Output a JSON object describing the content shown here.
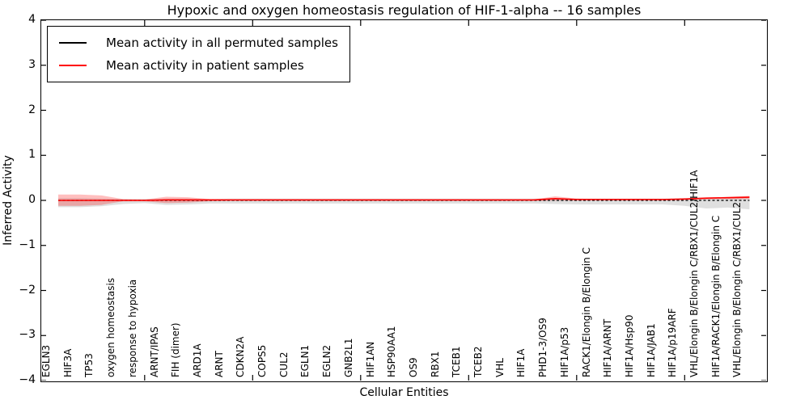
{
  "figure": {
    "title": "Hypoxic and oxygen homeostasis regulation of HIF-1-alpha -- 16 samples",
    "xlabel": "Cellular Entities",
    "ylabel": "Inferred Activity"
  },
  "legend": {
    "items": [
      {
        "label": "Mean activity in all permuted samples",
        "color": "#000000"
      },
      {
        "label": "Mean activity in patient samples",
        "color": "#ff0000"
      }
    ]
  },
  "axes": {
    "ylim": [
      -4,
      4
    ],
    "yticks": [
      {
        "value": 4,
        "label": "4"
      },
      {
        "value": 3,
        "label": "3"
      },
      {
        "value": 2,
        "label": "2"
      },
      {
        "value": 1,
        "label": "1"
      },
      {
        "value": 0,
        "label": "0"
      },
      {
        "value": -1,
        "label": "−1"
      },
      {
        "value": -2,
        "label": "−2"
      },
      {
        "value": -3,
        "label": "−3"
      },
      {
        "value": -4,
        "label": "−4"
      }
    ],
    "xtick_major_indices": [
      4,
      9,
      14,
      19,
      24,
      29
    ],
    "grid": false
  },
  "chart_data": {
    "type": "line",
    "title": "Hypoxic and oxygen homeostasis regulation of HIF-1-alpha -- 16 samples",
    "xlabel": "Cellular Entities",
    "ylabel": "Inferred Activity",
    "ylim": [
      -4,
      4
    ],
    "legend_position": "upper left",
    "grid": false,
    "categories": [
      "EGLN3",
      "HIF3A",
      "TP53",
      "oxygen homeostasis",
      "response to hypoxia",
      "ARNT/IPAS",
      "FIH (dimer)",
      "ARD1A",
      "ARNT",
      "CDKN2A",
      "COPS5",
      "CUL2",
      "EGLN1",
      "EGLN2",
      "GNB2L1",
      "HIF1AN",
      "HSP90AA1",
      "OS9",
      "RBX1",
      "TCEB1",
      "TCEB2",
      "VHL",
      "HIF1A",
      "PHD1-3/OS9",
      "HIF1A/p53",
      "RACK1/Elongin B/Elongin C",
      "HIF1A/ARNT",
      "HIF1A/Hsp90",
      "HIF1A/JAB1",
      "HIF1A/p19ARF",
      "VHL/Elongin B/Elongin C/RBX1/CUL2/HIF1A",
      "HIF1A/RACK1/Elongin B/Elongin C",
      "VHL/Elongin B/Elongin C/RBX1/CUL2"
    ],
    "series": [
      {
        "name": "Mean activity in all permuted samples",
        "color": "#000000",
        "line_style": "dashed",
        "band_color": "rgba(80,80,80,0.18)",
        "values": [
          0,
          0,
          0,
          0,
          0,
          0,
          0,
          0,
          0,
          0,
          0,
          0,
          0,
          0,
          0,
          0,
          0,
          0,
          0,
          0,
          0,
          0,
          0,
          0,
          0,
          0,
          0,
          0,
          0,
          0,
          0,
          0,
          0
        ],
        "band_upper": [
          0.05,
          0.05,
          0.04,
          0.03,
          0.03,
          0.04,
          0.04,
          0.03,
          0.04,
          0.04,
          0.04,
          0.04,
          0.04,
          0.04,
          0.04,
          0.04,
          0.04,
          0.04,
          0.04,
          0.04,
          0.04,
          0.04,
          0.04,
          0.04,
          0.04,
          0.04,
          0.04,
          0.04,
          0.04,
          0.05,
          0.06,
          0.06,
          0.08
        ],
        "band_lower": [
          -0.15,
          -0.15,
          -0.13,
          -0.08,
          -0.06,
          -0.1,
          -0.09,
          -0.07,
          -0.07,
          -0.07,
          -0.07,
          -0.07,
          -0.07,
          -0.07,
          -0.07,
          -0.07,
          -0.07,
          -0.07,
          -0.07,
          -0.07,
          -0.07,
          -0.07,
          -0.07,
          -0.08,
          -0.09,
          -0.09,
          -0.09,
          -0.09,
          -0.09,
          -0.12,
          -0.18,
          -0.16,
          -0.2
        ]
      },
      {
        "name": "Mean activity in patient samples",
        "color": "#ff0000",
        "line_style": "solid",
        "band_color": "rgba(255,0,0,0.25)",
        "values": [
          0,
          0,
          0,
          0,
          0,
          0.01,
          0.01,
          0.01,
          0.01,
          0.01,
          0.01,
          0.01,
          0.01,
          0.01,
          0.01,
          0.01,
          0.01,
          0.01,
          0.01,
          0.01,
          0.01,
          0.01,
          0.01,
          0.04,
          0.02,
          0.02,
          0.02,
          0.02,
          0.02,
          0.03,
          0.05,
          0.06,
          0.07
        ],
        "band_upper": [
          0.13,
          0.13,
          0.11,
          0.03,
          0.02,
          0.08,
          0.07,
          0.03,
          0.02,
          0.02,
          0.02,
          0.02,
          0.02,
          0.02,
          0.02,
          0.02,
          0.02,
          0.02,
          0.02,
          0.02,
          0.02,
          0.02,
          0.02,
          0.09,
          0.04,
          0.03,
          0.03,
          0.03,
          0.03,
          0.04,
          0.06,
          0.08,
          0.1
        ],
        "band_lower": [
          -0.12,
          -0.12,
          -0.1,
          -0.02,
          -0.02,
          -0.06,
          -0.05,
          -0.02,
          -0.01,
          -0.01,
          -0.01,
          -0.01,
          -0.01,
          -0.01,
          -0.01,
          -0.01,
          -0.01,
          -0.01,
          -0.01,
          -0.01,
          -0.01,
          -0.01,
          -0.01,
          -0.01,
          0.0,
          0.0,
          0.0,
          0.0,
          0.0,
          0.01,
          0.02,
          0.03,
          0.03
        ]
      }
    ]
  }
}
